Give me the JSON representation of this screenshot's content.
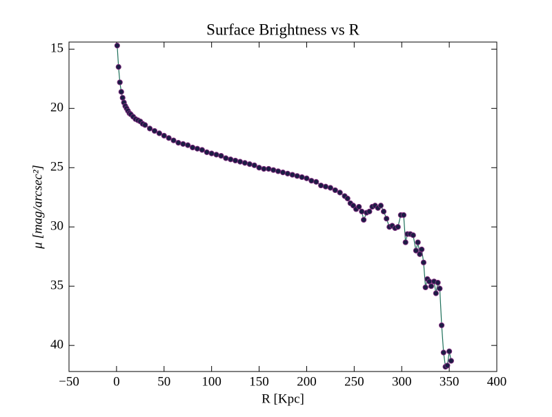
{
  "chart_data": {
    "type": "line",
    "title": "Surface Brightness vs R",
    "xlabel": "R [Kpc]",
    "ylabel": "μ [mag/arcsec²]",
    "xlim": [
      -50,
      400
    ],
    "ylim": [
      14.4,
      42.2
    ],
    "y_inverted": true,
    "xticks": [
      {
        "value": -50,
        "label": "−50"
      },
      0,
      50,
      100,
      150,
      200,
      250,
      300,
      350,
      400
    ],
    "yticks": [
      15,
      20,
      25,
      30,
      35,
      40
    ],
    "series": [
      {
        "line_color": "#1b6e58",
        "marker_color": "#1c1c44",
        "marker_edge": "#7a2a7a",
        "x": [
          0.7,
          2.1,
          3.5,
          5,
          6.4,
          7.8,
          9.2,
          10.6,
          12,
          13.5,
          15,
          17.5,
          20,
          22.5,
          25,
          27.5,
          30,
          35,
          40,
          45,
          50,
          55,
          60,
          65,
          70,
          75,
          80,
          85,
          90,
          95,
          100,
          105,
          110,
          115,
          120,
          125,
          130,
          135,
          140,
          145,
          150,
          155,
          160,
          165,
          170,
          175,
          180,
          185,
          190,
          195,
          200,
          205,
          210,
          215,
          220,
          225,
          230,
          235,
          240,
          243,
          246,
          249,
          252,
          255,
          258,
          260,
          263,
          266,
          269,
          272,
          275,
          278,
          281,
          284,
          287,
          290,
          293,
          296,
          299,
          302,
          304,
          306,
          309,
          312,
          315,
          317,
          319,
          321,
          323,
          325,
          327,
          329,
          331,
          334,
          336,
          338,
          340,
          342,
          344,
          346,
          348,
          350,
          352
        ],
        "values": [
          14.7,
          16.5,
          17.8,
          18.6,
          19.1,
          19.5,
          19.8,
          20.0,
          20.2,
          20.4,
          20.5,
          20.7,
          20.9,
          21.0,
          21.1,
          21.3,
          21.4,
          21.7,
          21.9,
          22.1,
          22.3,
          22.5,
          22.7,
          22.9,
          23.0,
          23.1,
          23.3,
          23.4,
          23.5,
          23.7,
          23.8,
          23.9,
          24.0,
          24.2,
          24.3,
          24.4,
          24.5,
          24.6,
          24.7,
          24.8,
          25.0,
          25.1,
          25.1,
          25.2,
          25.3,
          25.4,
          25.5,
          25.6,
          25.7,
          25.8,
          25.9,
          26.1,
          26.2,
          26.5,
          26.6,
          26.7,
          26.9,
          27.1,
          27.4,
          27.6,
          28.0,
          28.2,
          28.5,
          28.3,
          28.7,
          29.4,
          28.8,
          28.7,
          28.3,
          28.2,
          28.4,
          28.2,
          28.7,
          29.3,
          30.0,
          29.9,
          30.1,
          30.0,
          29.0,
          29.0,
          31.3,
          30.6,
          30.6,
          30.7,
          32.0,
          31.3,
          32.3,
          31.9,
          33.0,
          35.1,
          34.4,
          34.6,
          35.0,
          34.6,
          35.6,
          34.7,
          35.2,
          38.3,
          40.6,
          41.8,
          41.7,
          40.5,
          41.3
        ]
      }
    ]
  }
}
